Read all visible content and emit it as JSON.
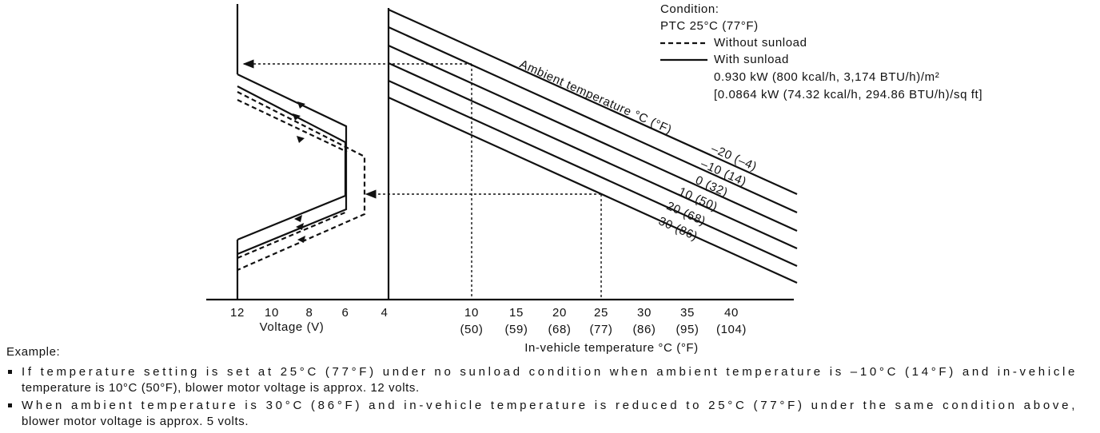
{
  "legend": {
    "title": "Condition:",
    "condition": "PTC 25°C (77°F)",
    "without": "Without sunload",
    "with": "With sunload",
    "sunload_1": "0.930 kW (800 kcal/h, 3,174 BTU/h)/m²",
    "sunload_2": "[0.0864 kW (74.32 kcal/h, 294.86 BTU/h)/sq ft]"
  },
  "voltage_axis": {
    "ticks": [
      "12",
      "10",
      "8",
      "6",
      "4"
    ],
    "title": "Voltage (V)"
  },
  "temperature_axis": {
    "ticks_c": [
      "10",
      "15",
      "20",
      "25",
      "30",
      "35",
      "40"
    ],
    "ticks_f": [
      "(50)",
      "(59)",
      "(68)",
      "(77)",
      "(86)",
      "(95)",
      "(104)"
    ],
    "title": "In-vehicle temperature °C (°F)"
  },
  "ambient": {
    "title": "Ambient temperature °C (°F)",
    "curves": [
      "–20 (–4)",
      "–10 (14)",
      "0 (32)",
      "10 (50)",
      "20 (68)",
      "30 (86)"
    ]
  },
  "example": {
    "title": "Example:",
    "items": [
      [
        "If temperature setting is set at 25°C (77°F) under no sunload condition when ambient temperature is –10°C (14°F) and in-vehicle",
        "temperature is 10°C (50°F), blower motor voltage is approx. 12 volts."
      ],
      [
        "When ambient temperature is 30°C (86°F) and in-vehicle temperature is reduced to 25°C (77°F) under the same condition above,",
        "blower motor voltage is approx. 5 volts."
      ]
    ]
  }
}
